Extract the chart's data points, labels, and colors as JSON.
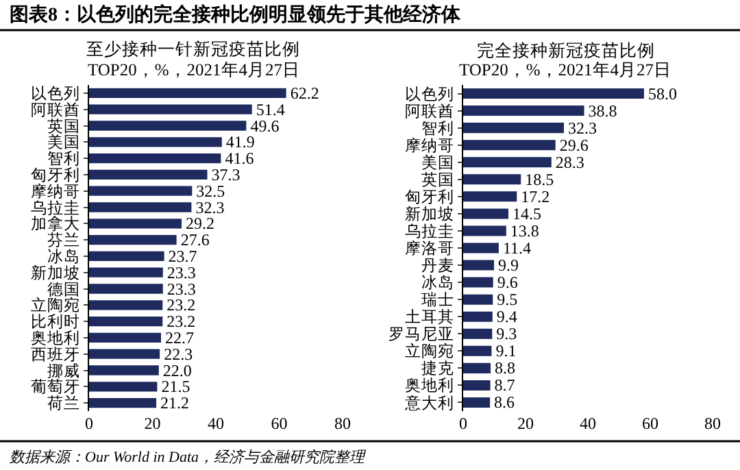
{
  "chart_data": [
    {
      "type": "bar",
      "orientation": "horizontal",
      "title": "至少接种一针新冠疫苗比例",
      "subtitle": "TOP20，%，2021年4月27日",
      "categories": [
        "以色列",
        "阿联酋",
        "英国",
        "美国",
        "智利",
        "匈牙利",
        "摩纳哥",
        "乌拉圭",
        "加拿大",
        "芬兰",
        "冰岛",
        "新加坡",
        "德国",
        "立陶宛",
        "比利时",
        "奥地利",
        "西班牙",
        "挪威",
        "葡萄牙",
        "荷兰"
      ],
      "values": [
        62.2,
        51.4,
        49.6,
        41.9,
        41.6,
        37.3,
        32.5,
        32.3,
        29.2,
        27.6,
        23.7,
        23.3,
        23.3,
        23.2,
        23.2,
        22.7,
        22.3,
        22.0,
        21.5,
        21.2
      ],
      "value_labels": [
        "62.2",
        "51.4",
        "49.6",
        "41.9",
        "41.6",
        "37.3",
        "32.5",
        "32.3",
        "29.2",
        "27.6",
        "23.7",
        "23.3",
        "23.3",
        "23.2",
        "23.2",
        "22.7",
        "22.3",
        "22.0",
        "21.5",
        "21.2"
      ],
      "color": "#1f2a5e",
      "xlim": [
        0,
        80
      ],
      "xticks": [
        0,
        20,
        40,
        60,
        80
      ],
      "annotations": [
        "图表8：以色列的完全接种比例明显领先于其他经济体",
        "数据来源：Our World in Data，经济与金融研究院整理"
      ]
    },
    {
      "type": "bar",
      "orientation": "horizontal",
      "title": "完全接种新冠疫苗比例",
      "subtitle": "TOP20，%，2021年4月27日",
      "categories": [
        "以色列",
        "阿联酋",
        "智利",
        "摩纳哥",
        "美国",
        "英国",
        "匈牙利",
        "新加坡",
        "乌拉圭",
        "摩洛哥",
        "丹麦",
        "冰岛",
        "瑞士",
        "土耳其",
        "罗马尼亚",
        "立陶宛",
        "捷克",
        "奥地利",
        "意大利"
      ],
      "values": [
        58.0,
        38.8,
        32.3,
        29.6,
        28.3,
        18.5,
        17.2,
        14.5,
        13.8,
        11.4,
        9.9,
        9.6,
        9.5,
        9.4,
        9.3,
        9.1,
        8.8,
        8.7,
        8.6
      ],
      "value_labels": [
        "58.0",
        "38.8",
        "32.3",
        "29.6",
        "28.3",
        "18.5",
        "17.2",
        "14.5",
        "13.8",
        "11.4",
        "9.9",
        "9.6",
        "9.5",
        "9.4",
        "9.3",
        "9.1",
        "8.8",
        "8.7",
        "8.6"
      ],
      "color": "#1f2a5e",
      "xlim": [
        0,
        80
      ],
      "xticks": [
        0,
        20,
        40,
        60,
        80
      ]
    }
  ]
}
